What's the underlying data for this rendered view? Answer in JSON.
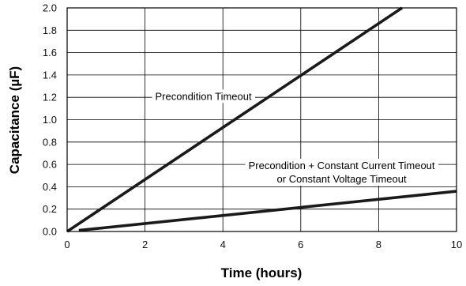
{
  "chart_data": {
    "type": "line",
    "xlabel": "Time (hours)",
    "ylabel": "Capacitance (µF)",
    "xlim": [
      0,
      10
    ],
    "ylim": [
      0,
      2.0
    ],
    "xticks": [
      "0",
      "2",
      "4",
      "6",
      "8",
      "10"
    ],
    "yticks": [
      "0.0",
      "0.2",
      "0.4",
      "0.6",
      "0.8",
      "1.0",
      "1.2",
      "1.4",
      "1.6",
      "1.8",
      "2.0"
    ],
    "grid": true,
    "series": [
      {
        "x": [
          0.0,
          8.6
        ],
        "y": [
          0.0,
          2.0
        ]
      },
      {
        "x": [
          0.3,
          10.0
        ],
        "y": [
          0.01,
          0.36
        ]
      }
    ],
    "annotations": [
      {
        "text": "Precondition Timeout",
        "x": 3.5,
        "y": 1.21
      },
      {
        "text": "Precondition + Constant Current Timeout",
        "x": 7.05,
        "y": 0.59
      },
      {
        "text": "or Constant Voltage Timeout",
        "x": 7.05,
        "y": 0.47
      }
    ]
  }
}
